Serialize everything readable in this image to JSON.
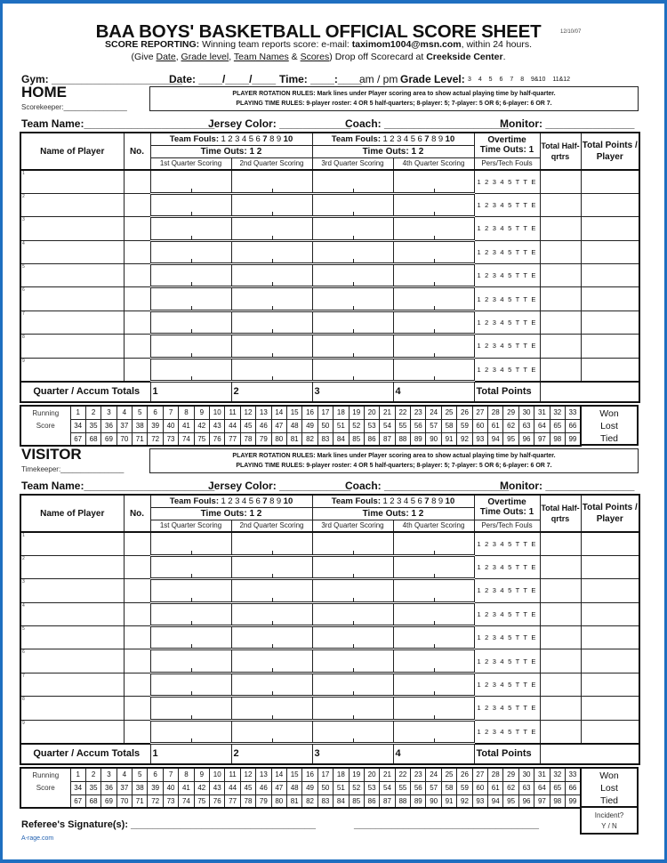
{
  "title": "BAA BOYS' BASKETBALL OFFICIAL SCORE SHEET",
  "revision_date": "12/10/07",
  "reporting": {
    "label": "SCORE REPORTING:",
    "text1": "Winning team reports score: e-mail:",
    "email": "taximom1004@msn.com",
    "text2": ", within 24 hours.",
    "give_open": "(Give ",
    "give_items": [
      "Date",
      "Grade level",
      "Team Names",
      "Scores"
    ],
    "give_close": ")   Drop off Scorecard at ",
    "location": "Creekside Center",
    "end": "."
  },
  "game_info": {
    "gym": "Gym: ______________________",
    "date": "Date: ____/____/____",
    "time": "Time: ____:____",
    "ampm": "am / pm",
    "grade_label": "Grade Level:",
    "grades": "3 4 5 6 7 8 9&10 11&12"
  },
  "rules": {
    "rotation": "PLAYER ROTATION RULES: Mark lines under Player scoring area to show actual playing time by half-quarter.",
    "playing": "PLAYING TIME RULES: 9-player roster: 4 OR 5 half-quarters;  8-player: 5;  7-player: 5 OR 6;  6-player: 6 OR 7."
  },
  "team_line": {
    "team_name": "Team Name:______________________",
    "jersey": "Jersey Color: ____________",
    "coach": "Coach: _____________________",
    "monitor": "Monitor: _______________"
  },
  "table": {
    "name_of_player": "Name of Player",
    "no": "No.",
    "team_fouls_label": "Team Fouls:",
    "foul_numbers": [
      "1",
      "2",
      "3",
      "4",
      "5",
      "6",
      "7",
      "8",
      "9",
      "10"
    ],
    "bold_fouls": [
      "7",
      "10"
    ],
    "time_outs": "Time Outs:   1   2",
    "overtime": "Overtime",
    "ot_time_outs": "Time Outs:  1",
    "total_half_qrtrs": "Total Half-qrtrs",
    "total_points_player": "Total Points / Player",
    "quarters": [
      "1st Quarter Scoring",
      "2nd Quarter Scoring",
      "3rd Quarter Scoring",
      "4th Quarter Scoring"
    ],
    "pers_tech": "Pers/Tech Fouls",
    "rows": [
      "1",
      "2",
      "3",
      "4",
      "5",
      "6",
      "7",
      "8",
      "9"
    ],
    "foul_marks": "1 2 3 4 5 T T E",
    "totals_label": "Quarter / Accum Totals",
    "totals_quarters": [
      "1",
      "2",
      "3",
      "4"
    ],
    "total_points": "Total Points"
  },
  "running": {
    "label1": "Running",
    "label2": "Score",
    "rows": [
      [
        "1",
        "2",
        "3",
        "4",
        "5",
        "6",
        "7",
        "8",
        "9",
        "10",
        "11",
        "12",
        "13",
        "14",
        "15",
        "16",
        "17",
        "18",
        "19",
        "20",
        "21",
        "22",
        "23",
        "24",
        "25",
        "26",
        "27",
        "28",
        "29",
        "30",
        "31",
        "32",
        "33"
      ],
      [
        "34",
        "35",
        "36",
        "37",
        "38",
        "39",
        "40",
        "41",
        "42",
        "43",
        "44",
        "45",
        "46",
        "47",
        "48",
        "49",
        "50",
        "51",
        "52",
        "53",
        "54",
        "55",
        "56",
        "57",
        "58",
        "59",
        "60",
        "61",
        "62",
        "63",
        "64",
        "65",
        "66"
      ],
      [
        "67",
        "68",
        "69",
        "70",
        "71",
        "72",
        "73",
        "74",
        "75",
        "76",
        "77",
        "78",
        "79",
        "80",
        "81",
        "82",
        "83",
        "84",
        "85",
        "86",
        "87",
        "88",
        "89",
        "90",
        "91",
        "92",
        "93",
        "94",
        "95",
        "96",
        "97",
        "98",
        "99"
      ]
    ],
    "results": [
      "Won",
      "Lost",
      "Tied"
    ]
  },
  "home": {
    "team": "HOME",
    "keeper": "Scorekeeper:________________"
  },
  "visitor": {
    "team": "VISITOR",
    "keeper": "Timekeeper:________________"
  },
  "footer": {
    "referee": "Referee's Signature(s): __________________________________",
    "referee2": "__________________________________",
    "incident": "Incident?",
    "yn": "Y / N",
    "brand": "A-rage.com"
  },
  "colors": {
    "frame": "#1f6fc0",
    "ink": "#111111"
  }
}
